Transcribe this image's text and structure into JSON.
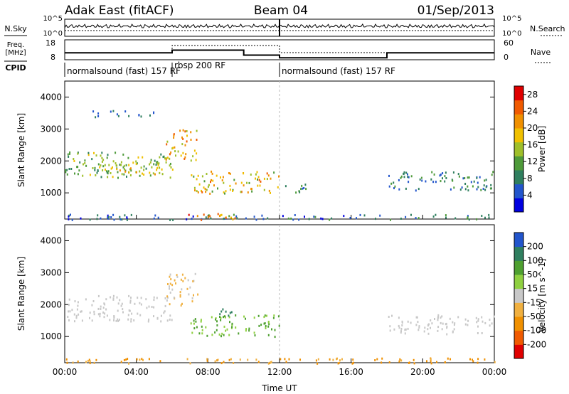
{
  "header": {
    "title": "Adak East (fitACF)",
    "beam": "Beam 04",
    "date": "01/Sep/2013"
  },
  "status_panels": {
    "nsky_label": "N.Sky",
    "nsearch_label": "N.Search",
    "noise_ticks": [
      "10^5",
      "10^0"
    ],
    "freq_label": "Freq.",
    "freq_unit": "[MHz]",
    "freq_ticks": [
      "18",
      "8"
    ],
    "nave_label": "Nave",
    "nave_ticks": [
      "60",
      "0"
    ],
    "cpid_label": "CPID",
    "cpid_segments": [
      {
        "label": "normalsound (fast) 157 RF",
        "start_h": 0,
        "end_h": 6
      },
      {
        "label": "rbsp 200 RF",
        "start_h": 6,
        "end_h": 12
      },
      {
        "label": "normalsound (fast) 157 RF",
        "start_h": 12,
        "end_h": 24
      }
    ]
  },
  "chart_data": [
    {
      "type": "heatmap",
      "name": "power-panel",
      "ylabel": "Slant Range [km]",
      "x_range_h": [
        0,
        24
      ],
      "ylim": [
        180,
        4500
      ],
      "yticks": [
        1000,
        2000,
        3000,
        4000
      ],
      "colorbar": {
        "label": "Power [dB]",
        "ticks": [
          4,
          8,
          12,
          16,
          20,
          24,
          28
        ],
        "range": [
          0,
          30
        ],
        "colors": [
          "#0000e0",
          "#2255cc",
          "#2f7f5f",
          "#4e9a3a",
          "#9fbf2a",
          "#f0c000",
          "#f09000",
          "#f05a00",
          "#e00000"
        ]
      },
      "echo_regions": [
        {
          "t0": 0.0,
          "t1": 6.0,
          "r0": 1500,
          "r1": 2300,
          "v0": 8,
          "v1": 18
        },
        {
          "t0": 2.0,
          "t1": 6.2,
          "r0": 1600,
          "r1": 2000,
          "v0": 12,
          "v1": 22
        },
        {
          "t0": 5.6,
          "t1": 7.4,
          "r0": 2000,
          "r1": 3000,
          "v0": 14,
          "v1": 26
        },
        {
          "t0": 7.0,
          "t1": 12.0,
          "r0": 1000,
          "r1": 1700,
          "v0": 12,
          "v1": 24
        },
        {
          "t0": 12.0,
          "t1": 13.5,
          "r0": 1000,
          "r1": 1300,
          "v0": 6,
          "v1": 12
        },
        {
          "t0": 18.0,
          "t1": 24.0,
          "r0": 1100,
          "r1": 1700,
          "v0": 4,
          "v1": 12
        },
        {
          "t0": 0.0,
          "t1": 24.0,
          "r0": 180,
          "r1": 350,
          "v0": 2,
          "v1": 12
        },
        {
          "t0": 1.5,
          "t1": 5.0,
          "r0": 3400,
          "r1": 3600,
          "v0": 4,
          "v1": 8
        },
        {
          "t0": 6.5,
          "t1": 9.5,
          "r0": 180,
          "r1": 400,
          "v0": 16,
          "v1": 29
        }
      ]
    },
    {
      "type": "heatmap",
      "name": "velocity-panel",
      "ylabel": "Slant Range [km]",
      "xlabel": "Time UT",
      "x_range_h": [
        0,
        24
      ],
      "xtick_labels": [
        "00:00",
        "04:00",
        "08:00",
        "12:00",
        "16:00",
        "20:00",
        "00:00"
      ],
      "ylim": [
        180,
        4500
      ],
      "yticks": [
        1000,
        2000,
        3000,
        4000
      ],
      "colorbar": {
        "label": "Velocity [m s^-1]",
        "ticks": [
          -200,
          -100,
          -50,
          -15,
          15,
          50,
          100,
          200
        ],
        "colors": [
          "#e00000",
          "#f05a00",
          "#f09000",
          "#f0b040",
          "#c8c8c8",
          "#8fd040",
          "#4ea030",
          "#2f7f5f",
          "#2255cc"
        ]
      },
      "echo_regions": [
        {
          "t0": 0.0,
          "t1": 6.0,
          "r0": 1500,
          "r1": 2300,
          "v0": -15,
          "v1": 15
        },
        {
          "t0": 5.6,
          "t1": 7.4,
          "r0": 2000,
          "r1": 3000,
          "v0": -50,
          "v1": 15
        },
        {
          "t0": 7.0,
          "t1": 12.0,
          "r0": 1000,
          "r1": 1700,
          "v0": 15,
          "v1": 100
        },
        {
          "t0": 8.5,
          "t1": 9.5,
          "r0": 1600,
          "r1": 1900,
          "v0": 100,
          "v1": 200
        },
        {
          "t0": 18.0,
          "t1": 24.0,
          "r0": 1100,
          "r1": 1700,
          "v0": -15,
          "v1": 15
        },
        {
          "t0": 0.0,
          "t1": 24.0,
          "r0": 180,
          "r1": 350,
          "v0": -100,
          "v1": -15
        }
      ]
    }
  ]
}
